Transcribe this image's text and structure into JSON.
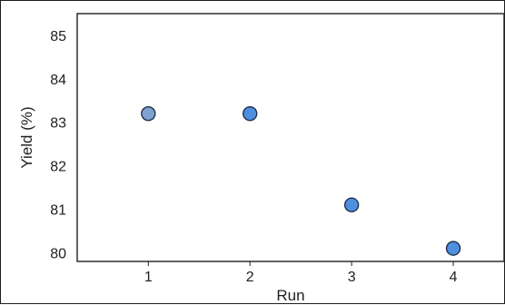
{
  "chart_data": {
    "type": "scatter",
    "title": "",
    "xlabel": "Run",
    "ylabel": "Yield (%)",
    "x": [
      1,
      2,
      3,
      4
    ],
    "y": [
      83.2,
      83.2,
      81.1,
      80.1
    ],
    "xlim": [
      0.3,
      4.5
    ],
    "ylim": [
      79.8,
      85.5
    ],
    "xticks": [
      "1",
      "2",
      "3",
      "4"
    ],
    "yticks": [
      "80",
      "81",
      "82",
      "83",
      "84",
      "85"
    ],
    "grid": false,
    "legend": "none",
    "colors": {
      "point_fill": "#4f8fe0",
      "point_fill_first": "#7fa2d0",
      "point_stroke": "#1f2f4a",
      "axis": "#1f1f1f"
    }
  }
}
